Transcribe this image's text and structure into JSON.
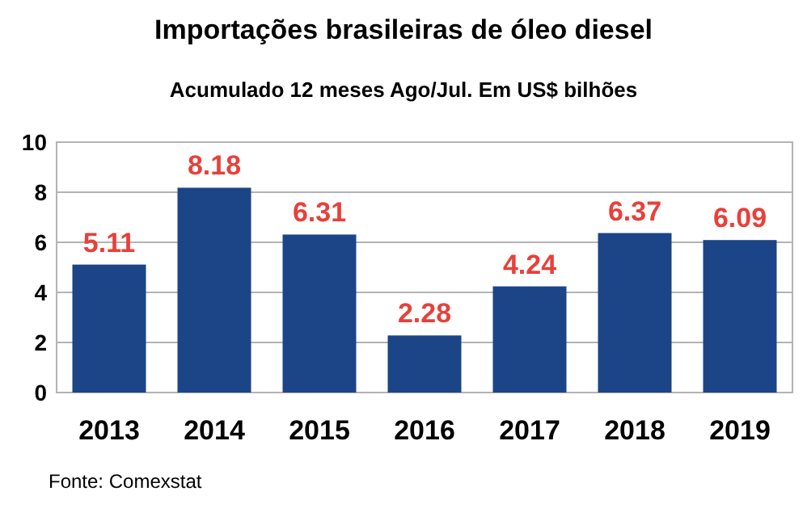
{
  "chart_data": {
    "type": "bar",
    "title": "Importações brasileiras de óleo diesel",
    "subtitle": "Acumulado 12 meses Ago/Jul. Em US$ bilhões",
    "categories": [
      "2013",
      "2014",
      "2015",
      "2016",
      "2017",
      "2018",
      "2019"
    ],
    "values": [
      5.11,
      8.18,
      6.31,
      2.28,
      4.24,
      6.37,
      6.09
    ],
    "color": "#1c4587",
    "ylim": [
      0,
      10
    ],
    "yticks": [
      0,
      2,
      4,
      6,
      8,
      10
    ],
    "grid": "y",
    "data_labels": true,
    "annotations": [
      "Fonte: Comexstat"
    ]
  }
}
